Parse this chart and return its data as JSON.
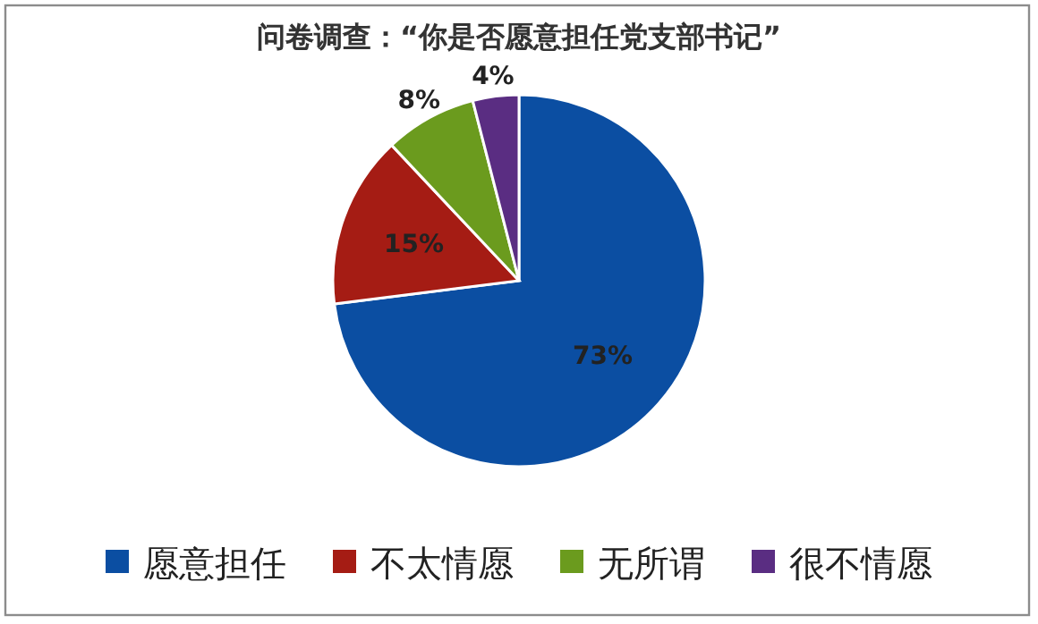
{
  "chart_data": {
    "type": "pie",
    "title": "问卷调查：“你是否愿意担任党支部书记”",
    "categories": [
      "愿意担任",
      "不太情愿",
      "无所谓",
      "很不情愿"
    ],
    "values": [
      73,
      15,
      8,
      4
    ],
    "colors": [
      "#0b4ea2",
      "#a51c14",
      "#6b9b1e",
      "#5a2d82"
    ],
    "value_labels": [
      "73%",
      "15%",
      "8%",
      "4%"
    ],
    "legend": "bottom"
  }
}
